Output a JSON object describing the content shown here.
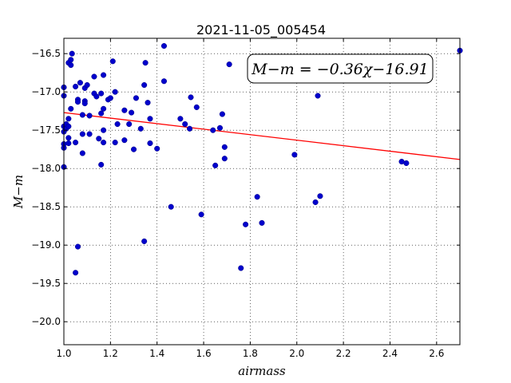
{
  "chart_data": {
    "type": "scatter",
    "title": "2021-11-05_005454",
    "xlabel": "airmass",
    "ylabel": "M−m",
    "xlim": [
      1.0,
      2.7
    ],
    "ylim": [
      -20.3,
      -16.3
    ],
    "y_inverted": true,
    "grid": true,
    "x_ticks": [
      "1.0",
      "1.2",
      "1.4",
      "1.6",
      "1.8",
      "2.0",
      "2.2",
      "2.4",
      "2.6"
    ],
    "y_ticks": [
      "−16.5",
      "−17.0",
      "−17.5",
      "−18.0",
      "−18.5",
      "−19.0",
      "−19.5",
      "−20.0"
    ],
    "annotation": "M−m = −0.36χ−16.91",
    "point_color": "#0000cc",
    "fit_color": "#ff0000",
    "fit": {
      "slope": -0.36,
      "intercept": -16.91,
      "x_range": [
        1.0,
        2.7
      ]
    },
    "points": [
      [
        1.0,
        -16.94
      ],
      [
        1.0,
        -17.05
      ],
      [
        1.0,
        -17.45
      ],
      [
        1.0,
        -17.52
      ],
      [
        1.0,
        -17.68
      ],
      [
        1.0,
        -17.73
      ],
      [
        1.0,
        -17.98
      ],
      [
        1.01,
        -17.42
      ],
      [
        1.01,
        -17.48
      ],
      [
        1.02,
        -16.62
      ],
      [
        1.02,
        -17.35
      ],
      [
        1.02,
        -17.45
      ],
      [
        1.02,
        -17.6
      ],
      [
        1.02,
        -17.67
      ],
      [
        1.03,
        -16.65
      ],
      [
        1.03,
        -16.58
      ],
      [
        1.03,
        -17.22
      ],
      [
        1.035,
        -16.5
      ],
      [
        1.05,
        -16.93
      ],
      [
        1.05,
        -17.66
      ],
      [
        1.05,
        -19.36
      ],
      [
        1.06,
        -17.1
      ],
      [
        1.06,
        -17.13
      ],
      [
        1.06,
        -19.02
      ],
      [
        1.07,
        -16.88
      ],
      [
        1.08,
        -17.3
      ],
      [
        1.08,
        -17.55
      ],
      [
        1.08,
        -17.8
      ],
      [
        1.09,
        -16.95
      ],
      [
        1.09,
        -17.12
      ],
      [
        1.09,
        -17.15
      ],
      [
        1.1,
        -16.91
      ],
      [
        1.11,
        -17.31
      ],
      [
        1.11,
        -17.55
      ],
      [
        1.13,
        -16.8
      ],
      [
        1.13,
        -17.02
      ],
      [
        1.14,
        -17.06
      ],
      [
        1.15,
        -17.61
      ],
      [
        1.16,
        -17.02
      ],
      [
        1.16,
        -17.28
      ],
      [
        1.16,
        -17.95
      ],
      [
        1.17,
        -16.78
      ],
      [
        1.17,
        -17.22
      ],
      [
        1.17,
        -17.5
      ],
      [
        1.17,
        -17.66
      ],
      [
        1.19,
        -17.1
      ],
      [
        1.2,
        -17.08
      ],
      [
        1.21,
        -16.6
      ],
      [
        1.22,
        -17.0
      ],
      [
        1.22,
        -17.66
      ],
      [
        1.23,
        -17.42
      ],
      [
        1.26,
        -17.24
      ],
      [
        1.26,
        -17.63
      ],
      [
        1.28,
        -17.42
      ],
      [
        1.29,
        -17.27
      ],
      [
        1.3,
        -17.75
      ],
      [
        1.31,
        -17.08
      ],
      [
        1.33,
        -17.48
      ],
      [
        1.345,
        -16.91
      ],
      [
        1.345,
        -18.95
      ],
      [
        1.35,
        -16.62
      ],
      [
        1.36,
        -17.14
      ],
      [
        1.37,
        -17.35
      ],
      [
        1.37,
        -17.67
      ],
      [
        1.4,
        -17.74
      ],
      [
        1.43,
        -16.4
      ],
      [
        1.43,
        -16.86
      ],
      [
        1.46,
        -18.5
      ],
      [
        1.5,
        -17.35
      ],
      [
        1.52,
        -17.42
      ],
      [
        1.54,
        -17.48
      ],
      [
        1.545,
        -17.07
      ],
      [
        1.57,
        -17.2
      ],
      [
        1.59,
        -18.6
      ],
      [
        1.64,
        -17.5
      ],
      [
        1.65,
        -17.96
      ],
      [
        1.67,
        -17.47
      ],
      [
        1.68,
        -17.29
      ],
      [
        1.69,
        -17.72
      ],
      [
        1.69,
        -17.87
      ],
      [
        1.71,
        -16.64
      ],
      [
        1.76,
        -19.3
      ],
      [
        1.78,
        -18.73
      ],
      [
        1.83,
        -18.37
      ],
      [
        1.85,
        -18.71
      ],
      [
        1.99,
        -17.82
      ],
      [
        2.08,
        -18.44
      ],
      [
        2.09,
        -17.05
      ],
      [
        2.1,
        -18.36
      ],
      [
        2.45,
        -17.91
      ],
      [
        2.47,
        -17.93
      ],
      [
        2.7,
        -16.46
      ]
    ]
  }
}
